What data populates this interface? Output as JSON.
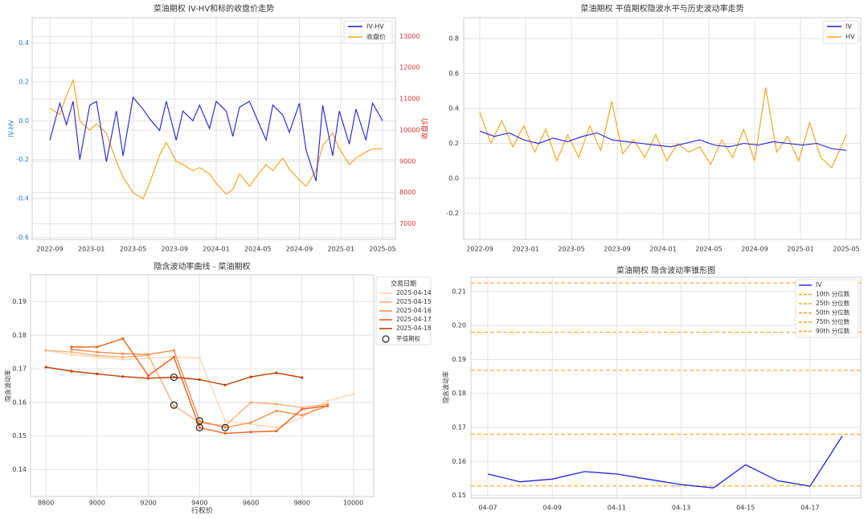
{
  "chart_data": [
    {
      "type": "line",
      "title": "菜油期权 IV-HV和标的收盘价走势",
      "xlabel": "",
      "ylabel": "IV-HV",
      "ylabel_right": "收盘价",
      "ylim": [
        -0.61,
        0.53
      ],
      "ylim_right": [
        6500,
        13600
      ],
      "yticks": [
        "-0.6",
        "-0.4",
        "-0.2",
        "0.0",
        "0.2",
        "0.4"
      ],
      "yticks_right": [
        "7000",
        "8000",
        "9000",
        "10000",
        "11000",
        "12000",
        "13000"
      ],
      "xticks": [
        "2022-09",
        "2023-01",
        "2023-05",
        "2023-09",
        "2024-01",
        "2024-05",
        "2024-09",
        "2025-01",
        "2025-05"
      ],
      "legend": [
        "IV-HV",
        "收盘价"
      ],
      "legend_position": "top-right",
      "colors": {
        "iv_hv": "#1f1fd6",
        "close": "#f5a623",
        "right_axis": "#e03030"
      },
      "series": [
        {
          "name": "IV-HV",
          "t": [
            0,
            0.03,
            0.05,
            0.07,
            0.09,
            0.12,
            0.14,
            0.17,
            0.2,
            0.22,
            0.25,
            0.28,
            0.3,
            0.33,
            0.35,
            0.38,
            0.4,
            0.43,
            0.45,
            0.48,
            0.5,
            0.53,
            0.55,
            0.57,
            0.6,
            0.62,
            0.65,
            0.67,
            0.7,
            0.72,
            0.75,
            0.77,
            0.8,
            0.82,
            0.85,
            0.87,
            0.9,
            0.92,
            0.95,
            0.97,
            1.0
          ],
          "values": [
            -0.1,
            0.09,
            -0.02,
            0.1,
            -0.2,
            0.08,
            0.1,
            -0.21,
            0.05,
            -0.18,
            0.12,
            0.06,
            0.01,
            -0.05,
            0.1,
            -0.1,
            0.05,
            0.0,
            0.08,
            -0.04,
            0.1,
            0.05,
            -0.08,
            0.07,
            0.1,
            0.02,
            -0.1,
            0.08,
            0.03,
            -0.06,
            0.09,
            -0.15,
            -0.31,
            0.08,
            -0.18,
            0.05,
            -0.12,
            0.06,
            -0.1,
            0.09,
            0.0
          ]
        },
        {
          "name": "收盘价",
          "t": [
            0,
            0.03,
            0.05,
            0.07,
            0.09,
            0.12,
            0.14,
            0.17,
            0.2,
            0.22,
            0.25,
            0.28,
            0.3,
            0.33,
            0.35,
            0.38,
            0.4,
            0.43,
            0.45,
            0.48,
            0.5,
            0.53,
            0.55,
            0.57,
            0.6,
            0.62,
            0.65,
            0.67,
            0.7,
            0.72,
            0.75,
            0.77,
            0.8,
            0.82,
            0.85,
            0.87,
            0.9,
            0.92,
            0.95,
            0.97,
            1.0
          ],
          "values": [
            10700,
            10500,
            11100,
            11600,
            10300,
            10000,
            10200,
            9900,
            9000,
            8500,
            8000,
            7800,
            8300,
            9200,
            9600,
            9000,
            8900,
            8700,
            8800,
            8600,
            8300,
            7950,
            8100,
            8600,
            8200,
            8500,
            8900,
            8700,
            9100,
            8750,
            8400,
            8200,
            8700,
            9500,
            9900,
            9400,
            8900,
            9100,
            9300,
            9400,
            9400
          ]
        }
      ]
    },
    {
      "type": "line",
      "title": "菜油期权 平值期权隐波水平与历史波动率走势",
      "xlabel": "",
      "ylabel": "",
      "ylim": [
        -0.35,
        0.92
      ],
      "yticks": [
        "-0.2",
        "0.0",
        "0.2",
        "0.4",
        "0.6",
        "0.8"
      ],
      "xticks": [
        "2022-09",
        "2023-01",
        "2023-05",
        "2023-09",
        "2024-01",
        "2024-05",
        "2024-09",
        "2025-01",
        "2025-05"
      ],
      "legend": [
        "IV",
        "HV"
      ],
      "legend_position": "top-right",
      "colors": {
        "iv": "#1f1fd6",
        "hv": "#f5a623"
      },
      "series": [
        {
          "name": "IV",
          "t": [
            0,
            0.04,
            0.08,
            0.12,
            0.16,
            0.2,
            0.24,
            0.28,
            0.32,
            0.36,
            0.4,
            0.44,
            0.48,
            0.52,
            0.56,
            0.6,
            0.64,
            0.68,
            0.72,
            0.76,
            0.8,
            0.84,
            0.88,
            0.92,
            0.96,
            1.0
          ],
          "values": [
            0.27,
            0.24,
            0.26,
            0.22,
            0.2,
            0.23,
            0.21,
            0.24,
            0.26,
            0.22,
            0.21,
            0.2,
            0.19,
            0.18,
            0.2,
            0.22,
            0.19,
            0.18,
            0.2,
            0.19,
            0.21,
            0.2,
            0.19,
            0.2,
            0.17,
            0.16
          ]
        },
        {
          "name": "HV",
          "t": [
            0,
            0.03,
            0.06,
            0.09,
            0.12,
            0.15,
            0.18,
            0.21,
            0.24,
            0.27,
            0.3,
            0.33,
            0.36,
            0.39,
            0.42,
            0.45,
            0.48,
            0.51,
            0.54,
            0.57,
            0.6,
            0.63,
            0.66,
            0.69,
            0.72,
            0.75,
            0.78,
            0.81,
            0.84,
            0.87,
            0.9,
            0.93,
            0.96,
            1.0
          ],
          "values": [
            0.38,
            0.2,
            0.33,
            0.18,
            0.3,
            0.15,
            0.28,
            0.1,
            0.25,
            0.12,
            0.3,
            0.16,
            0.44,
            0.14,
            0.22,
            0.12,
            0.25,
            0.1,
            0.2,
            0.15,
            0.18,
            0.08,
            0.22,
            0.12,
            0.28,
            0.1,
            0.52,
            0.15,
            0.24,
            0.1,
            0.32,
            0.12,
            0.06,
            0.25
          ]
        }
      ]
    },
    {
      "type": "line",
      "title": "隐含波动率曲线 - 菜油期权",
      "xlabel": "行权价",
      "ylabel": "隐含波动率",
      "xlim": [
        8740,
        10080
      ],
      "ylim": [
        0.132,
        0.198
      ],
      "yticks": [
        "0.14",
        "0.15",
        "0.16",
        "0.17",
        "0.18",
        "0.19"
      ],
      "xticks": [
        "8800",
        "9000",
        "9200",
        "9400",
        "9600",
        "9800",
        "10000"
      ],
      "legend_title": "交易日期",
      "legend": [
        "2025-04-14",
        "2025-04-15",
        "2025-04-16",
        "2025-04-17",
        "2025-04-18",
        "平值期权"
      ],
      "legend_position": "top-right",
      "series": [
        {
          "name": "2025-04-14",
          "color": "#fdd7b0",
          "x": [
            8800,
            8900,
            9000,
            9100,
            9200,
            9300,
            9400,
            9500,
            9600,
            9700,
            9800,
            9900,
            10000
          ],
          "y": [
            0.1755,
            0.1742,
            0.1735,
            0.1728,
            0.1732,
            0.1735,
            0.1732,
            0.1545,
            0.1535,
            0.1525,
            0.1555,
            0.1605,
            0.1625
          ]
        },
        {
          "name": "2025-04-15",
          "color": "#fdb07a",
          "x": [
            8800,
            8900,
            9000,
            9100,
            9200,
            9300,
            9400,
            9500,
            9600,
            9700,
            9800,
            9900
          ],
          "y": [
            0.1755,
            0.175,
            0.174,
            0.1735,
            0.174,
            0.159,
            0.154,
            0.153,
            0.16,
            0.1595,
            0.1585,
            0.1595
          ]
        },
        {
          "name": "2025-04-16",
          "color": "#fb8b4a",
          "x": [
            8900,
            9000,
            9100,
            9200,
            9300,
            9400,
            9500,
            9600,
            9700,
            9800,
            9900
          ],
          "y": [
            0.1758,
            0.175,
            0.1745,
            0.1743,
            0.1755,
            0.1545,
            0.1525,
            0.154,
            0.1575,
            0.1562,
            0.159
          ]
        },
        {
          "name": "2025-04-17",
          "color": "#e9611f",
          "x": [
            8900,
            9000,
            9100,
            9200,
            9300,
            9400,
            9500,
            9600,
            9700,
            9800,
            9900
          ],
          "y": [
            0.1765,
            0.1765,
            0.179,
            0.168,
            0.1735,
            0.1525,
            0.1508,
            0.1512,
            0.1515,
            0.158,
            0.159
          ]
        },
        {
          "name": "2025-04-18",
          "color": "#bf3f05",
          "x": [
            8800,
            8900,
            9000,
            9100,
            9200,
            9300,
            9400,
            9500,
            9600,
            9700,
            9800
          ],
          "y": [
            0.1705,
            0.1693,
            0.1685,
            0.1677,
            0.1672,
            0.1675,
            0.1668,
            0.1652,
            0.1676,
            0.1688,
            0.1674
          ]
        }
      ],
      "atm_points": {
        "x": [
          9300,
          9300,
          9400,
          9400,
          9500
        ],
        "y": [
          0.1675,
          0.1592,
          0.1545,
          0.1525,
          0.1525
        ]
      }
    },
    {
      "type": "line",
      "title": "菜油期权 隐含波动率锥形图",
      "xlabel": "",
      "ylabel": "隐含波动率",
      "ylim": [
        0.1492,
        0.2142
      ],
      "yticks": [
        "0.15",
        "0.16",
        "0.17",
        "0.18",
        "0.19",
        "0.20",
        "0.21"
      ],
      "xticks": [
        "04-07",
        "04-09",
        "04-11",
        "04-13",
        "04-15",
        "04-17"
      ],
      "legend": [
        "IV",
        "10th 分位数",
        "25th 分位数",
        "50th 分位数",
        "75th 分位数",
        "90th 分位数"
      ],
      "legend_position": "top-right",
      "colors": {
        "iv": "#1f1fd6",
        "quantiles": "#f5a623"
      },
      "iv": {
        "x_days": [
          0,
          1,
          2,
          3,
          4,
          5,
          6,
          7,
          8,
          9,
          10,
          11
        ],
        "values": [
          0.1563,
          0.154,
          0.1548,
          0.157,
          0.1563,
          0.1547,
          0.1532,
          0.1522,
          0.159,
          0.1543,
          0.1527,
          0.1675
        ]
      },
      "quantiles": [
        0.1528,
        0.168,
        0.1868,
        0.198,
        0.2125
      ]
    }
  ]
}
